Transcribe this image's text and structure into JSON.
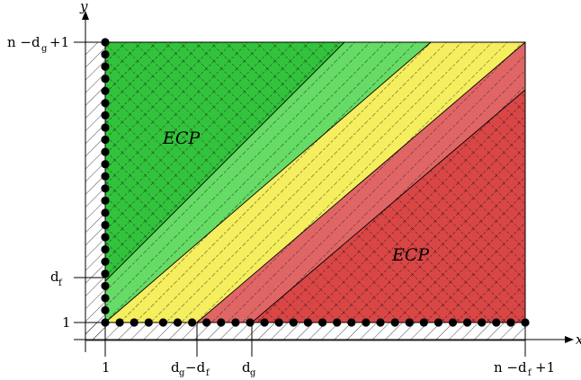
{
  "axes": {
    "x_label": "x",
    "y_label": "y"
  },
  "x_ticks": [
    {
      "main": "1",
      "sub": "",
      "tail": ""
    },
    {
      "main": "d",
      "sub": "g",
      "tail": "−d",
      "sub2": "f"
    },
    {
      "main": "d",
      "sub": "g",
      "tail": ""
    },
    {
      "main": "n −d",
      "sub": "f",
      "tail": "+1"
    }
  ],
  "y_ticks": [
    {
      "main": "1",
      "sub": "",
      "tail": ""
    },
    {
      "main": "d",
      "sub": "f",
      "tail": ""
    },
    {
      "main": "n −d",
      "sub": "g",
      "tail": "+1"
    }
  ],
  "regions": {
    "upper_label": "ECP",
    "lower_label": "ECP"
  },
  "colors": {
    "dark_green": "#33c23c",
    "light_green": "#66dc66",
    "yellow": "#f5ee5e",
    "light_red": "#e06666",
    "dark_red": "#d94646"
  }
}
